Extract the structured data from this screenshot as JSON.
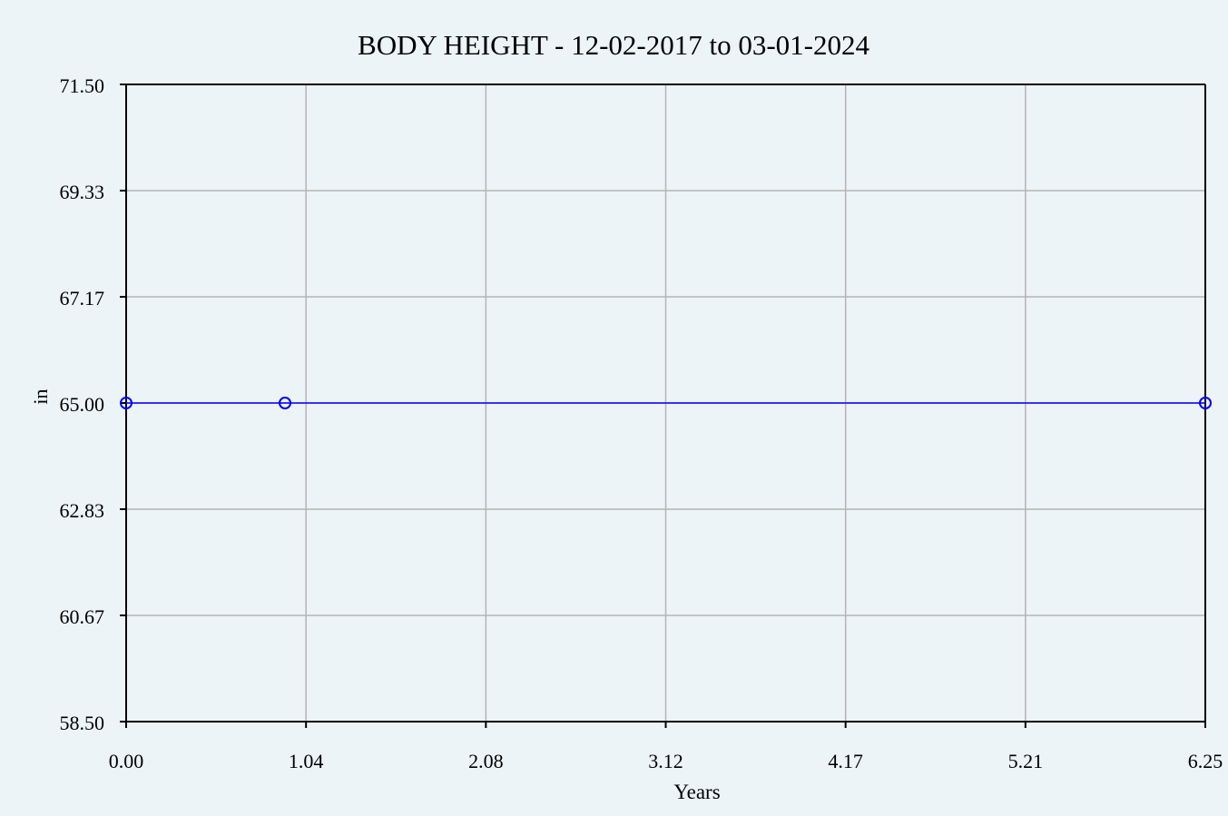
{
  "chart_data": {
    "type": "line",
    "title": "BODY HEIGHT - 12-02-2017 to 03-01-2024",
    "xlabel": "Years",
    "ylabel": "in",
    "xlim": [
      0,
      6.25
    ],
    "ylim": [
      58.5,
      71.5
    ],
    "x_ticks": [
      "0.00",
      "1.04",
      "2.08",
      "3.12",
      "4.17",
      "5.21",
      "6.25"
    ],
    "y_ticks": [
      "71.50",
      "69.33",
      "67.17",
      "65.00",
      "62.83",
      "60.67",
      "58.50"
    ],
    "grid": true,
    "series": [
      {
        "x": [
          0,
          0.92,
          6.25
        ],
        "y": [
          65.0,
          65.0,
          65.0
        ],
        "color": "#0000ff",
        "marker": "circle"
      }
    ],
    "background": "#edf4f7"
  }
}
